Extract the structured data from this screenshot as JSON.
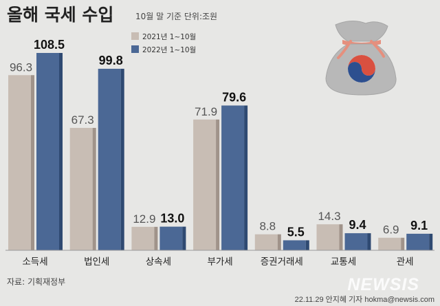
{
  "title": "올해 국세 수입",
  "subtitle": "10월 말 기준 단위:조원",
  "source": "자료: 기획재정부",
  "credit": "22.11.29 안지혜 기자 hokma@newsis.com",
  "logo_text": "NEWSIS",
  "colors": {
    "y2021": "#c8bdb4",
    "y2022": "#4b6895",
    "background": "#e7e7e5"
  },
  "icon": "money-bag-icon",
  "chart_data": {
    "type": "bar",
    "categories": [
      "소득세",
      "법인세",
      "상속세",
      "부가세",
      "증권거래세",
      "교통세",
      "관세"
    ],
    "series": [
      {
        "name": "2021년 1~10월",
        "values": [
          96.3,
          67.3,
          12.9,
          71.9,
          8.8,
          14.3,
          6.9
        ],
        "labels": [
          "96.3",
          "67.3",
          "12.9",
          "71.9",
          "8.8",
          "14.3",
          "6.9"
        ]
      },
      {
        "name": "2022년 1~10월",
        "values": [
          108.5,
          99.8,
          13.0,
          79.6,
          5.5,
          9.4,
          9.1
        ],
        "labels": [
          "108.5",
          "99.8",
          "13.0",
          "79.6",
          "5.5",
          "9.4",
          "9.1"
        ]
      }
    ],
    "unit": "조원",
    "ylim": [
      0,
      108.5
    ],
    "legend": "top-center",
    "grid": false
  }
}
